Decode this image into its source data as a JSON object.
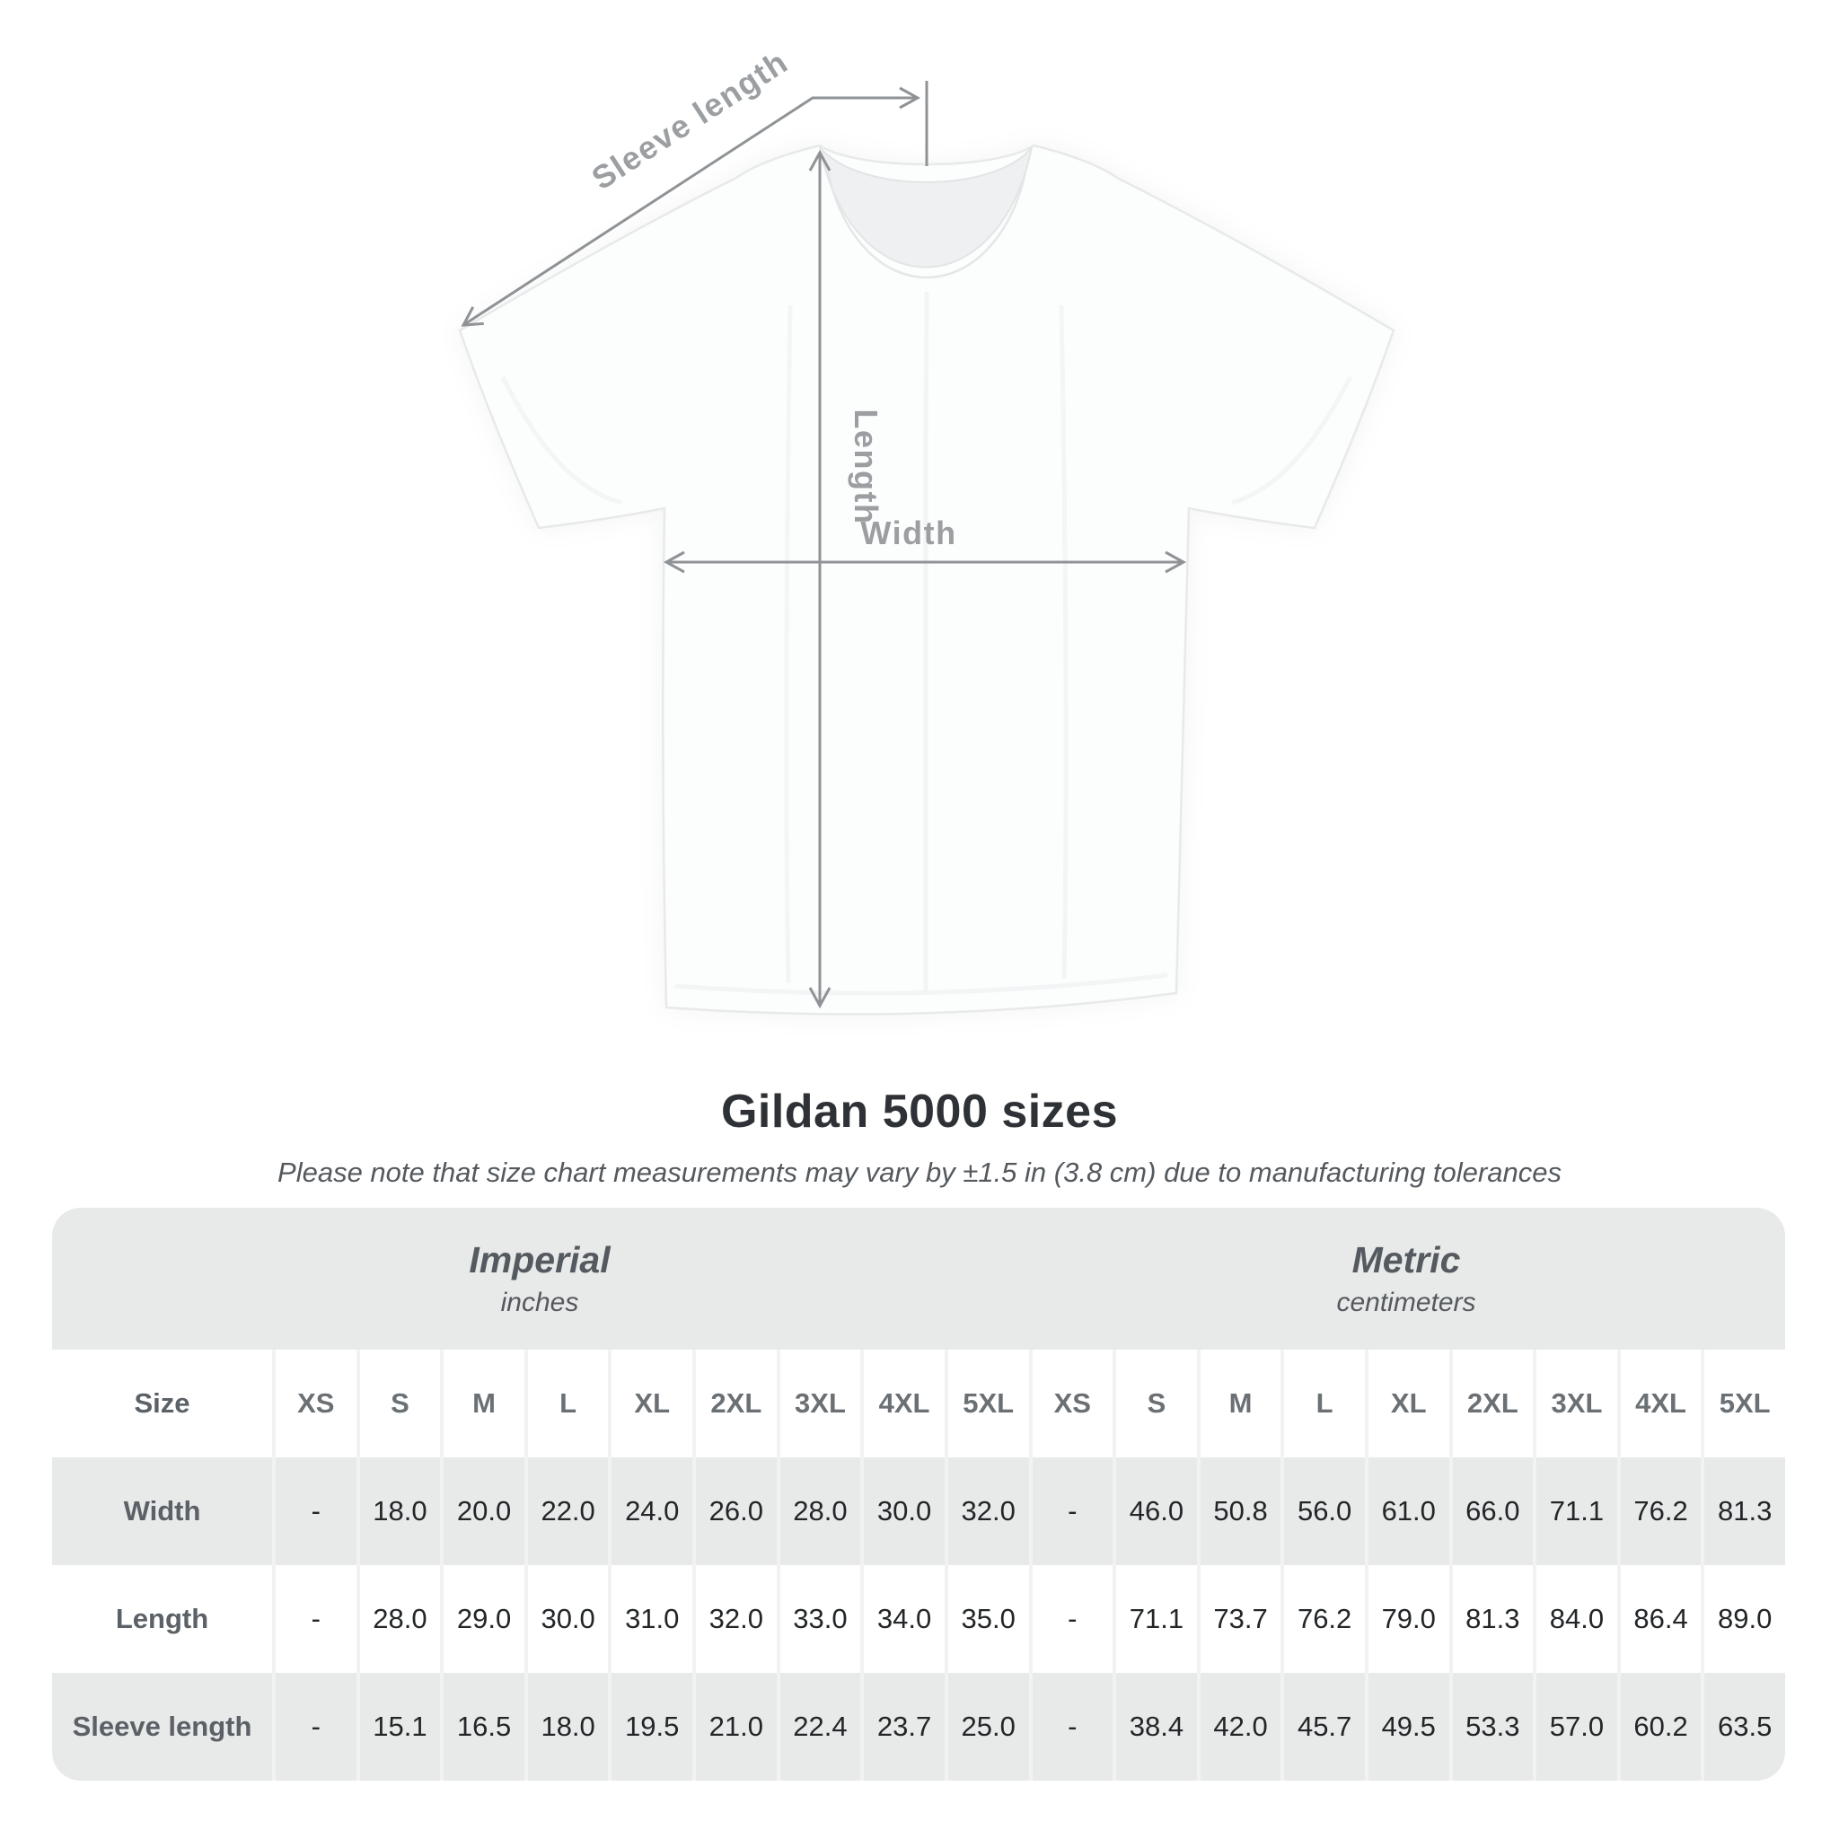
{
  "diagram": {
    "labels": {
      "sleeve_length": "Sleeve length",
      "length": "Length",
      "width": "Width"
    }
  },
  "title": "Gildan 5000 sizes",
  "subtitle": "Please note that size chart measurements may vary by ±1.5 in (3.8 cm) due to manufacturing tolerances",
  "size_chart": {
    "sections": [
      {
        "name": "Imperial",
        "unit": "inches"
      },
      {
        "name": "Metric",
        "unit": "centimeters"
      }
    ],
    "size_label": "Size",
    "sizes": [
      "XS",
      "S",
      "M",
      "L",
      "XL",
      "2XL",
      "3XL",
      "4XL",
      "5XL"
    ],
    "rows": [
      {
        "label": "Width",
        "imperial": [
          "-",
          "18.0",
          "20.0",
          "22.0",
          "24.0",
          "26.0",
          "28.0",
          "30.0",
          "32.0"
        ],
        "metric": [
          "-",
          "46.0",
          "50.8",
          "56.0",
          "61.0",
          "66.0",
          "71.1",
          "76.2",
          "81.3"
        ]
      },
      {
        "label": "Length",
        "imperial": [
          "-",
          "28.0",
          "29.0",
          "30.0",
          "31.0",
          "32.0",
          "33.0",
          "34.0",
          "35.0"
        ],
        "metric": [
          "-",
          "71.1",
          "73.7",
          "76.2",
          "79.0",
          "81.3",
          "84.0",
          "86.4",
          "89.0"
        ]
      },
      {
        "label": "Sleeve length",
        "imperial": [
          "-",
          "15.1",
          "16.5",
          "18.0",
          "19.5",
          "21.0",
          "22.4",
          "23.7",
          "25.0"
        ],
        "metric": [
          "-",
          "38.4",
          "42.0",
          "45.7",
          "49.5",
          "53.3",
          "57.0",
          "60.2",
          "63.5"
        ]
      }
    ]
  },
  "colors": {
    "table_band_gray": "#e8e9e9",
    "column_separator": "#f2f2f2",
    "annotation_gray": "#8f9396",
    "diagram_label_gray": "#9b9fa2",
    "title_color": "#2e3236",
    "shirt_white": "#fcfdfd"
  }
}
